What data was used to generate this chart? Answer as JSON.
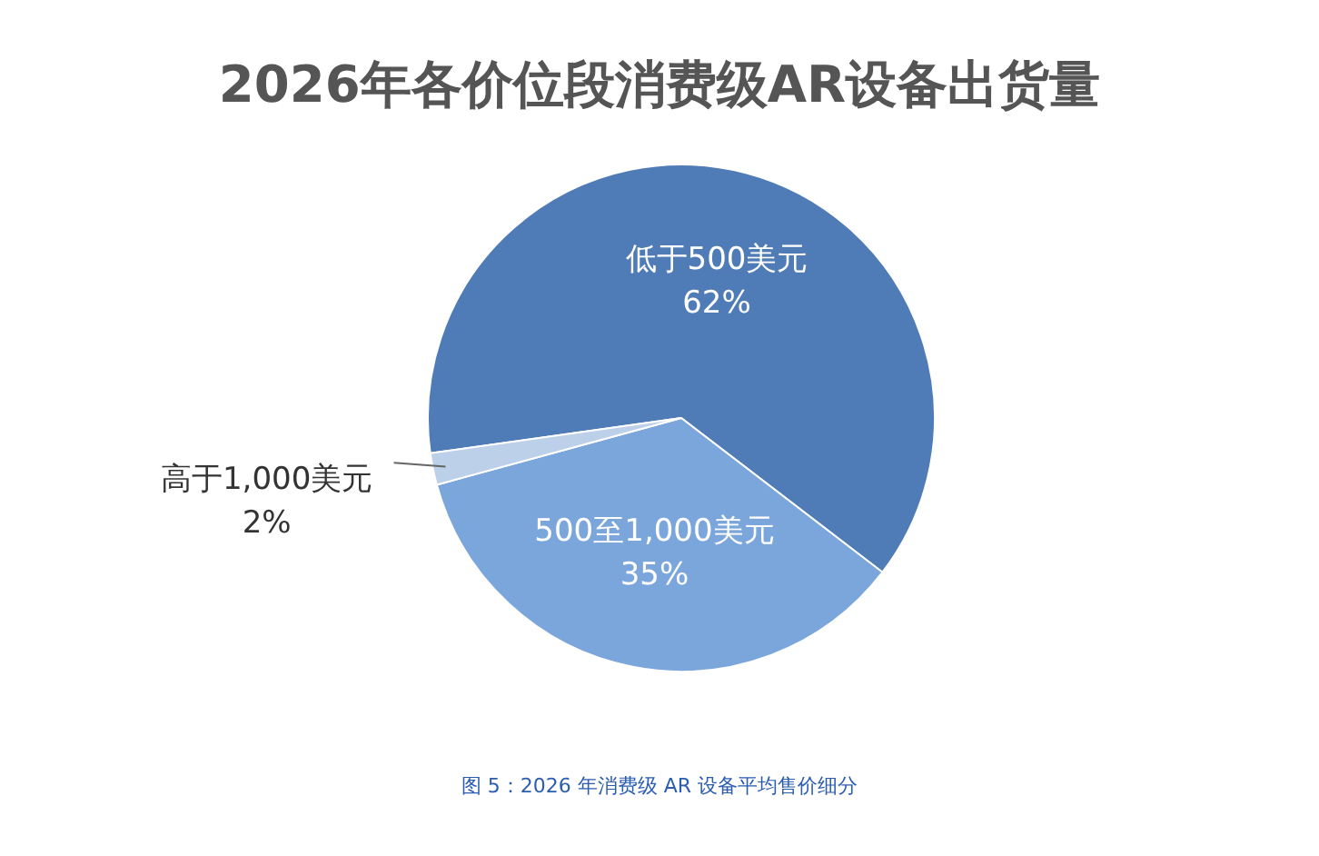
{
  "chart_data": {
    "type": "pie",
    "title": "2026年各价位段消费级AR设备出货量",
    "categories": [
      "低于500美元",
      "500至1,000美元",
      "高于1,000美元"
    ],
    "values": [
      62,
      35,
      2
    ],
    "value_labels": [
      "62%",
      "35%",
      "2%"
    ],
    "colors": [
      "#4f7cb6",
      "#7ba6dc",
      "#bcd0ea"
    ],
    "legend": false,
    "annotations": [
      "图 5：2026 年消费级 AR 设备平均售价细分"
    ]
  }
}
